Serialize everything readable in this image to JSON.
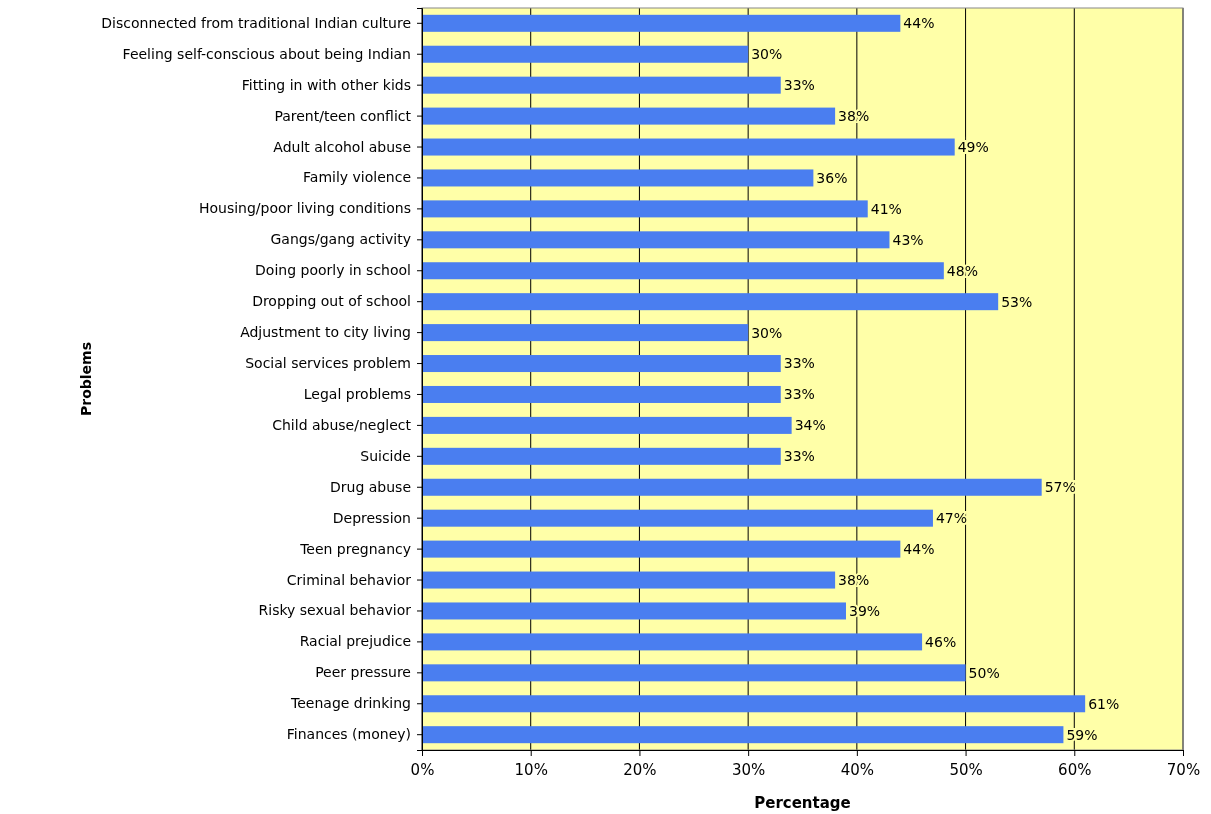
{
  "chart_data": {
    "type": "bar",
    "orientation": "horizontal",
    "xlabel": "Percentage",
    "ylabel": "Problems",
    "categories": [
      "Disconnected from traditional Indian culture",
      "Feeling self-conscious about being Indian",
      "Fitting in with other kids",
      "Parent/teen conflict",
      "Adult alcohol abuse",
      "Family violence",
      "Housing/poor living conditions",
      "Gangs/gang activity",
      "Doing poorly in school",
      "Dropping out of school",
      "Adjustment to city living",
      "Social services problem",
      "Legal problems",
      "Child abuse/neglect",
      "Suicide",
      "Drug abuse",
      "Depression",
      "Teen pregnancy",
      "Criminal behavior",
      "Risky sexual behavior",
      "Racial prejudice",
      "Peer pressure",
      "Teenage drinking",
      "Finances (money)"
    ],
    "values": [
      44,
      30,
      33,
      38,
      49,
      36,
      41,
      43,
      48,
      53,
      30,
      33,
      33,
      34,
      33,
      57,
      47,
      44,
      38,
      39,
      46,
      50,
      61,
      59
    ],
    "value_labels": [
      "44%",
      "30%",
      "33%",
      "38%",
      "49%",
      "36%",
      "41%",
      "43%",
      "48%",
      "53%",
      "30%",
      "33%",
      "33%",
      "34%",
      "33%",
      "57%",
      "47%",
      "44%",
      "38%",
      "39%",
      "46%",
      "50%",
      "61%",
      "59%"
    ],
    "color": "#4a7ef0",
    "xlim": [
      0,
      70
    ],
    "xticks": [
      {
        "value": 0,
        "label": "0%"
      },
      {
        "value": 10,
        "label": "10%"
      },
      {
        "value": 20,
        "label": "20%"
      },
      {
        "value": 30,
        "label": "30%"
      },
      {
        "value": 40,
        "label": "40%"
      },
      {
        "value": 50,
        "label": "50%"
      },
      {
        "value": 60,
        "label": "60%"
      },
      {
        "value": 70,
        "label": "70%"
      }
    ],
    "grid": "x"
  }
}
